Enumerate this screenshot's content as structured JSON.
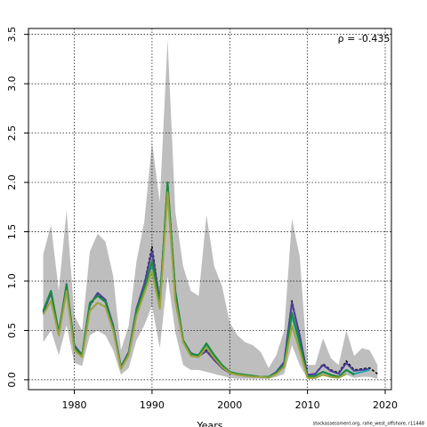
{
  "chart_data": {
    "type": "line",
    "x": [
      1976,
      1977,
      1978,
      1979,
      1980,
      1981,
      1982,
      1983,
      1984,
      1985,
      1986,
      1987,
      1988,
      1989,
      1990,
      1991,
      1992,
      1993,
      1994,
      1995,
      1996,
      1997,
      1998,
      1999,
      2000,
      2001,
      2002,
      2003,
      2004,
      2005,
      2006,
      2007,
      2008,
      2009,
      2010,
      2011,
      2012,
      2013,
      2014,
      2015,
      2016,
      2017,
      2018,
      2019
    ],
    "band": {
      "color": "#bebebe",
      "upper": [
        1.27,
        1.57,
        0.9,
        1.72,
        0.65,
        0.5,
        1.3,
        1.48,
        1.4,
        1.05,
        0.3,
        0.55,
        1.2,
        1.6,
        2.4,
        1.8,
        3.45,
        1.7,
        1.15,
        0.9,
        0.85,
        1.67,
        1.15,
        0.95,
        0.58,
        0.45,
        0.38,
        0.35,
        0.28,
        0.12,
        0.25,
        0.5,
        1.63,
        1.25,
        0.15,
        0.15,
        0.42,
        0.22,
        0.15,
        0.5,
        0.24,
        0.32,
        0.3,
        0.15
      ],
      "lower": [
        0.38,
        0.5,
        0.25,
        0.55,
        0.17,
        0.14,
        0.45,
        0.5,
        0.45,
        0.3,
        0.05,
        0.12,
        0.4,
        0.55,
        0.75,
        0.32,
        1.05,
        0.48,
        0.15,
        0.1,
        0.1,
        0.08,
        0.06,
        0.04,
        0.02,
        0.01,
        0.01,
        0.01,
        0.01,
        0.01,
        0.03,
        0.06,
        0.35,
        0.15,
        0.01,
        0.01,
        0.04,
        0.02,
        0.01,
        0.05,
        0.02,
        0.03,
        0.03,
        0.01
      ]
    },
    "series": [
      {
        "color": "#000000",
        "dashed": true,
        "values": [
          0.68,
          0.88,
          0.47,
          0.97,
          0.35,
          0.25,
          0.75,
          0.87,
          0.8,
          0.55,
          0.13,
          0.28,
          0.72,
          0.97,
          1.35,
          0.8,
          1.98,
          0.9,
          0.4,
          0.27,
          0.24,
          0.3,
          0.2,
          0.12,
          0.07,
          0.05,
          0.04,
          0.035,
          0.03,
          0.03,
          0.08,
          0.18,
          0.8,
          0.45,
          0.05,
          0.06,
          0.16,
          0.1,
          0.07,
          0.19,
          0.1,
          0.11,
          0.12,
          0.06
        ]
      },
      {
        "color": "#4b3d9a",
        "values": [
          0.68,
          0.88,
          0.47,
          0.97,
          0.35,
          0.25,
          0.76,
          0.88,
          0.81,
          0.55,
          0.13,
          0.28,
          0.72,
          0.97,
          1.3,
          0.8,
          1.97,
          0.9,
          0.4,
          0.27,
          0.24,
          0.29,
          0.2,
          0.12,
          0.07,
          0.05,
          0.04,
          0.035,
          0.03,
          0.03,
          0.08,
          0.18,
          0.78,
          0.45,
          0.05,
          0.06,
          0.15,
          0.09,
          0.06,
          0.17,
          0.09,
          0.1,
          0.11,
          null
        ]
      },
      {
        "color": "#1fa3b0",
        "values": [
          0.7,
          0.9,
          0.48,
          0.96,
          0.33,
          0.25,
          0.78,
          0.85,
          0.79,
          0.53,
          0.12,
          0.27,
          0.7,
          0.92,
          1.18,
          0.78,
          2.0,
          0.88,
          0.4,
          0.26,
          0.25,
          0.36,
          0.24,
          0.14,
          0.08,
          0.06,
          0.05,
          0.04,
          0.03,
          0.03,
          0.07,
          0.16,
          0.65,
          0.36,
          0.03,
          0.04,
          0.08,
          0.05,
          0.03,
          0.1,
          0.06,
          0.08,
          0.1,
          null
        ]
      },
      {
        "color": "#1a8a3a",
        "values": [
          0.7,
          0.9,
          0.48,
          0.96,
          0.33,
          0.25,
          0.78,
          0.85,
          0.79,
          0.53,
          0.12,
          0.27,
          0.7,
          0.92,
          1.2,
          0.78,
          2.0,
          0.88,
          0.4,
          0.26,
          0.25,
          0.37,
          0.25,
          0.15,
          0.08,
          0.06,
          0.05,
          0.04,
          0.03,
          0.03,
          0.07,
          0.16,
          0.68,
          0.38,
          0.03,
          0.04,
          0.08,
          0.05,
          0.03,
          0.1,
          0.05,
          null,
          null,
          null
        ]
      },
      {
        "color": "#9ca33a",
        "values": [
          0.66,
          0.8,
          0.45,
          0.9,
          0.3,
          0.23,
          0.7,
          0.78,
          0.74,
          0.5,
          0.11,
          0.25,
          0.65,
          0.88,
          1.1,
          0.72,
          1.9,
          0.8,
          0.38,
          0.24,
          0.23,
          0.33,
          0.22,
          0.13,
          0.07,
          0.05,
          0.04,
          0.03,
          0.03,
          0.02,
          0.06,
          0.13,
          0.55,
          0.3,
          0.02,
          0.02,
          0.05,
          0.03,
          0.02,
          0.06,
          null,
          null,
          null,
          null
        ]
      }
    ],
    "xlim": [
      1974.1,
      2020.8
    ],
    "ylim": [
      -0.1,
      3.56
    ],
    "xticks": [
      1980,
      1990,
      2000,
      2010,
      2020
    ],
    "yticks": [
      {
        "value": 0,
        "label": "0.0"
      },
      {
        "value": 0.5,
        "label": "0.5"
      },
      {
        "value": 1,
        "label": "1.0"
      },
      {
        "value": 1.5,
        "label": "1.5"
      },
      {
        "value": 2,
        "label": "2.0"
      },
      {
        "value": 2.5,
        "label": "2.5"
      },
      {
        "value": 3,
        "label": "3.0"
      },
      {
        "value": 3.5,
        "label": "3.5"
      }
    ],
    "grid": true,
    "xlabel": "Years",
    "annotation": "ρ = -0.435",
    "footnote": "stockassessment.org, rahe_west_offshore, r11448"
  }
}
